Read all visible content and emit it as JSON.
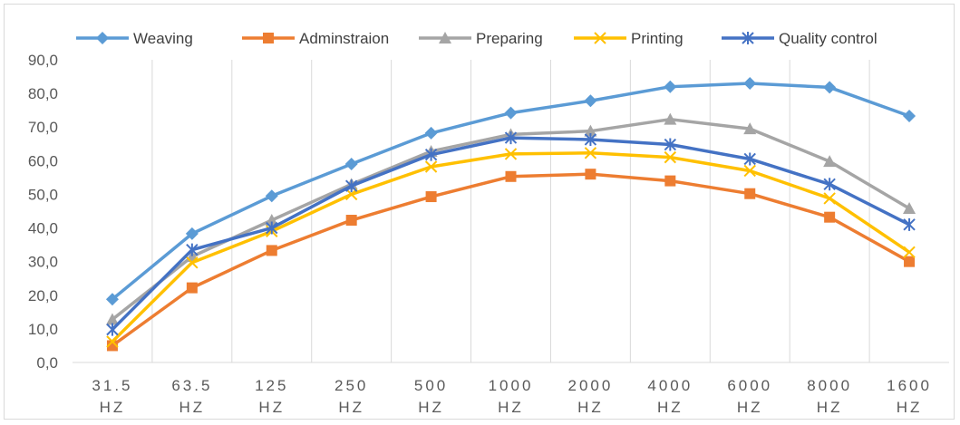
{
  "chart_data": {
    "type": "line",
    "title": "",
    "xlabel": "",
    "ylabel": "",
    "categories": [
      [
        "31.5",
        "HZ"
      ],
      [
        "63.5",
        "HZ"
      ],
      [
        "125",
        "HZ"
      ],
      [
        "250",
        "HZ"
      ],
      [
        "500",
        "HZ"
      ],
      [
        "1000",
        "HZ"
      ],
      [
        "2000",
        "HZ"
      ],
      [
        "4000",
        "HZ"
      ],
      [
        "6000",
        "HZ"
      ],
      [
        "8000",
        "HZ"
      ],
      [
        "1600",
        "HZ"
      ]
    ],
    "ylim": [
      0,
      90
    ],
    "yticks": [
      "0,0",
      "10,0",
      "20,0",
      "30,0",
      "40,0",
      "50,0",
      "60,0",
      "70,0",
      "80,0",
      "90,0"
    ],
    "grid": "vertical",
    "legend_position": "top",
    "series": [
      {
        "name": "Weaving",
        "color": "#5b9bd5",
        "marker": "diamond",
        "values": [
          18.8,
          38.3,
          49.5,
          59.0,
          68.2,
          74.2,
          77.8,
          82.0,
          83.0,
          81.8,
          73.3
        ]
      },
      {
        "name": "Adminstraion",
        "color": "#ed7d31",
        "marker": "square",
        "values": [
          5.0,
          22.2,
          33.3,
          42.3,
          49.3,
          55.3,
          56.0,
          54.0,
          50.2,
          43.2,
          30.0
        ]
      },
      {
        "name": "Preparing",
        "color": "#a5a5a5",
        "marker": "triangle",
        "values": [
          12.8,
          31.5,
          42.3,
          53.0,
          62.8,
          67.8,
          68.8,
          72.3,
          69.5,
          59.8,
          45.8
        ]
      },
      {
        "name": "Printing",
        "color": "#ffc000",
        "marker": "x",
        "values": [
          6.2,
          29.7,
          39.0,
          50.0,
          58.2,
          62.0,
          62.3,
          61.0,
          57.0,
          48.8,
          32.8
        ]
      },
      {
        "name": "Quality control",
        "color": "#4472c4",
        "marker": "star",
        "values": [
          9.8,
          33.5,
          40.0,
          52.5,
          61.8,
          66.8,
          66.3,
          64.8,
          60.5,
          53.0,
          41.0
        ]
      }
    ]
  }
}
